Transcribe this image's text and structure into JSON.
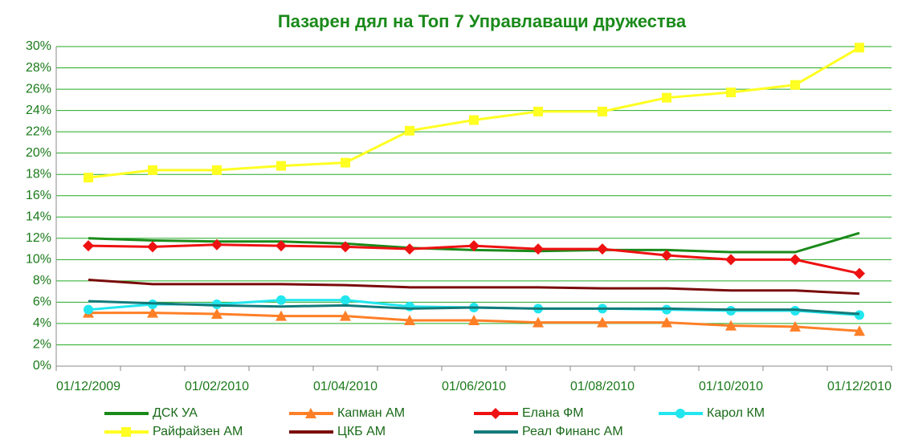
{
  "chart_data": {
    "type": "line",
    "title": "Пазарен дял на Топ 7 Управлаващи дружества",
    "categories": [
      "01/12/2009",
      null,
      "01/02/2010",
      null,
      "01/04/2010",
      null,
      "01/06/2010",
      null,
      "01/08/2010",
      null,
      "01/10/2010",
      null,
      "01/12/2010"
    ],
    "series": [
      {
        "name": "ДСК УА",
        "color": "#1a8a1a",
        "marker": "none",
        "values": [
          12.0,
          11.8,
          11.7,
          11.7,
          11.5,
          11.1,
          10.9,
          10.8,
          10.9,
          10.9,
          10.7,
          10.7,
          12.5
        ]
      },
      {
        "name": "Капман АМ",
        "color": "#ff7f27",
        "marker": "triangle",
        "values": [
          5.0,
          5.0,
          4.9,
          4.7,
          4.7,
          4.3,
          4.3,
          4.1,
          4.1,
          4.1,
          3.8,
          3.7,
          3.3
        ]
      },
      {
        "name": "Елана ФМ",
        "color": "#ee1111",
        "marker": "diamond",
        "values": [
          11.3,
          11.2,
          11.4,
          11.3,
          11.2,
          11.0,
          11.3,
          11.0,
          11.0,
          10.4,
          10.0,
          10.0,
          8.7
        ]
      },
      {
        "name": "Карол КМ",
        "color": "#22e6ee",
        "marker": "circle",
        "values": [
          5.3,
          5.8,
          5.8,
          6.2,
          6.2,
          5.6,
          5.5,
          5.4,
          5.4,
          5.3,
          5.2,
          5.2,
          4.8
        ]
      },
      {
        "name": "Райфайзен АМ",
        "color": "#ffff22",
        "marker": "square",
        "values": [
          17.7,
          18.4,
          18.4,
          18.8,
          19.1,
          22.1,
          23.1,
          23.9,
          23.9,
          25.2,
          25.7,
          26.4,
          29.9
        ]
      },
      {
        "name": "ЦКБ АМ",
        "color": "#7a0a0a",
        "marker": "none",
        "values": [
          8.1,
          7.7,
          7.7,
          7.7,
          7.6,
          7.4,
          7.4,
          7.4,
          7.3,
          7.3,
          7.1,
          7.1,
          6.8
        ]
      },
      {
        "name": "Реал Финанс АМ",
        "color": "#137a7a",
        "marker": "none",
        "values": [
          6.1,
          5.9,
          5.7,
          5.6,
          5.7,
          5.4,
          5.5,
          5.4,
          5.4,
          5.4,
          5.3,
          5.3,
          4.9
        ]
      }
    ],
    "ylim": [
      0,
      30
    ],
    "yticks": [
      {
        "value": 0,
        "label": "0%"
      },
      {
        "value": 2,
        "label": "2%"
      },
      {
        "value": 4,
        "label": "4%"
      },
      {
        "value": 6,
        "label": "6%"
      },
      {
        "value": 8,
        "label": "8%"
      },
      {
        "value": 10,
        "label": "10%"
      },
      {
        "value": 12,
        "label": "12%"
      },
      {
        "value": 14,
        "label": "14%"
      },
      {
        "value": 16,
        "label": "16%"
      },
      {
        "value": 18,
        "label": "18%"
      },
      {
        "value": 20,
        "label": "20%"
      },
      {
        "value": 22,
        "label": "22%"
      },
      {
        "value": 24,
        "label": "24%"
      },
      {
        "value": 26,
        "label": "26%"
      },
      {
        "value": 28,
        "label": "28%"
      },
      {
        "value": 30,
        "label": "30%"
      }
    ],
    "grid": true,
    "legend": "bottom"
  }
}
